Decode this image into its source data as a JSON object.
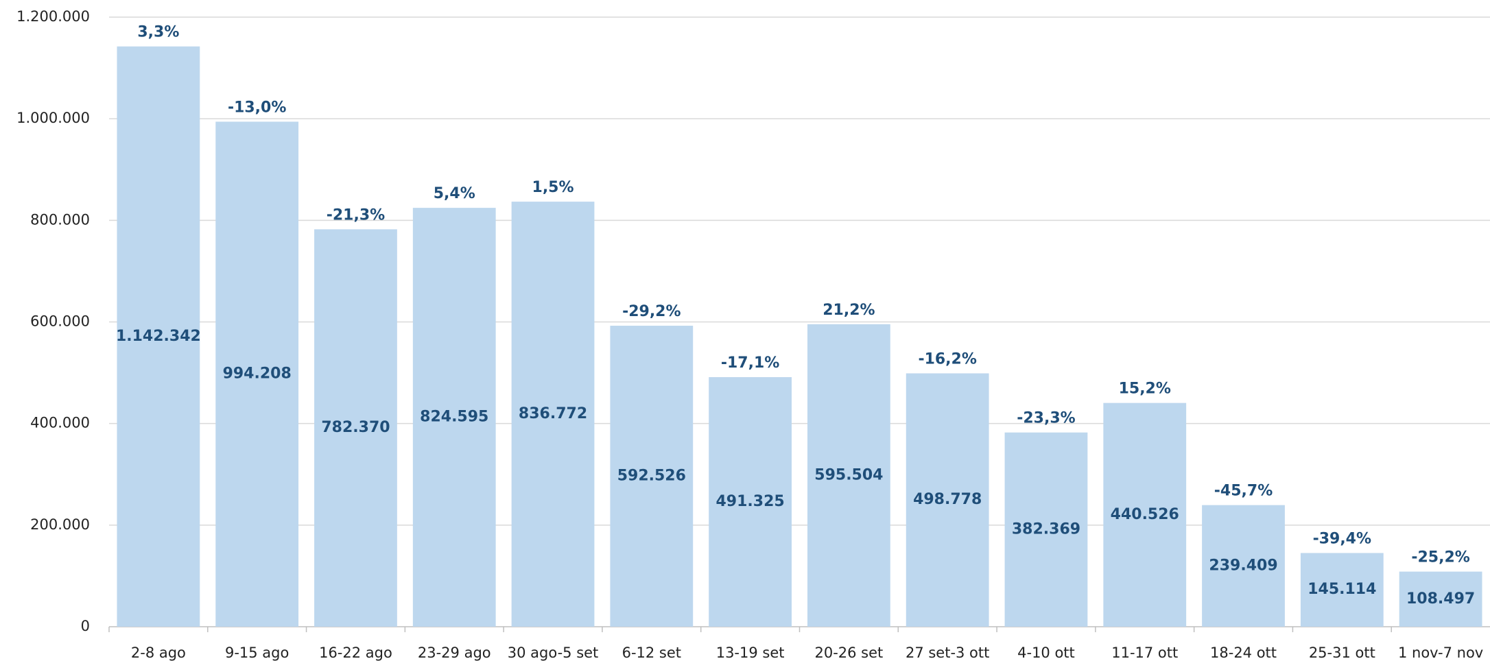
{
  "chart_data": {
    "type": "bar",
    "categories": [
      "2-8 ago",
      "9-15 ago",
      "16-22 ago",
      "23-29 ago",
      "30 ago-5 set",
      "6-12 set",
      "13-19 set",
      "20-26 set",
      "27 set-3 ott",
      "4-10 ott",
      "11-17 ott",
      "18-24 ott",
      "25-31 ott",
      "1 nov-7 nov"
    ],
    "values": [
      1142342,
      994208,
      782370,
      824595,
      836772,
      592526,
      491325,
      595504,
      498778,
      382369,
      440526,
      239409,
      145114,
      108497
    ],
    "value_labels": [
      "1.142.342",
      "994.208",
      "782.370",
      "824.595",
      "836.772",
      "592.526",
      "491.325",
      "595.504",
      "498.778",
      "382.369",
      "440.526",
      "239.409",
      "145.114",
      "108.497"
    ],
    "annotations": [
      "3,3%",
      "-13,0%",
      "-21,3%",
      "5,4%",
      "1,5%",
      "-29,2%",
      "-17,1%",
      "21,2%",
      "-16,2%",
      "-23,3%",
      "15,2%",
      "-45,7%",
      "-39,4%",
      "-25,2%"
    ],
    "color": "#bdd7ee",
    "ylim": [
      0,
      1200000
    ],
    "yticks": [
      0,
      {
        "value": 200000,
        "label": "200.000"
      },
      {
        "value": 400000,
        "label": "400.000"
      },
      {
        "value": 600000,
        "label": "600.000"
      },
      {
        "value": 800000,
        "label": "800.000"
      },
      {
        "value": 1000000,
        "label": "1.000.000"
      },
      {
        "value": 1200000,
        "label": "1.200.000"
      }
    ],
    "grid": true
  }
}
